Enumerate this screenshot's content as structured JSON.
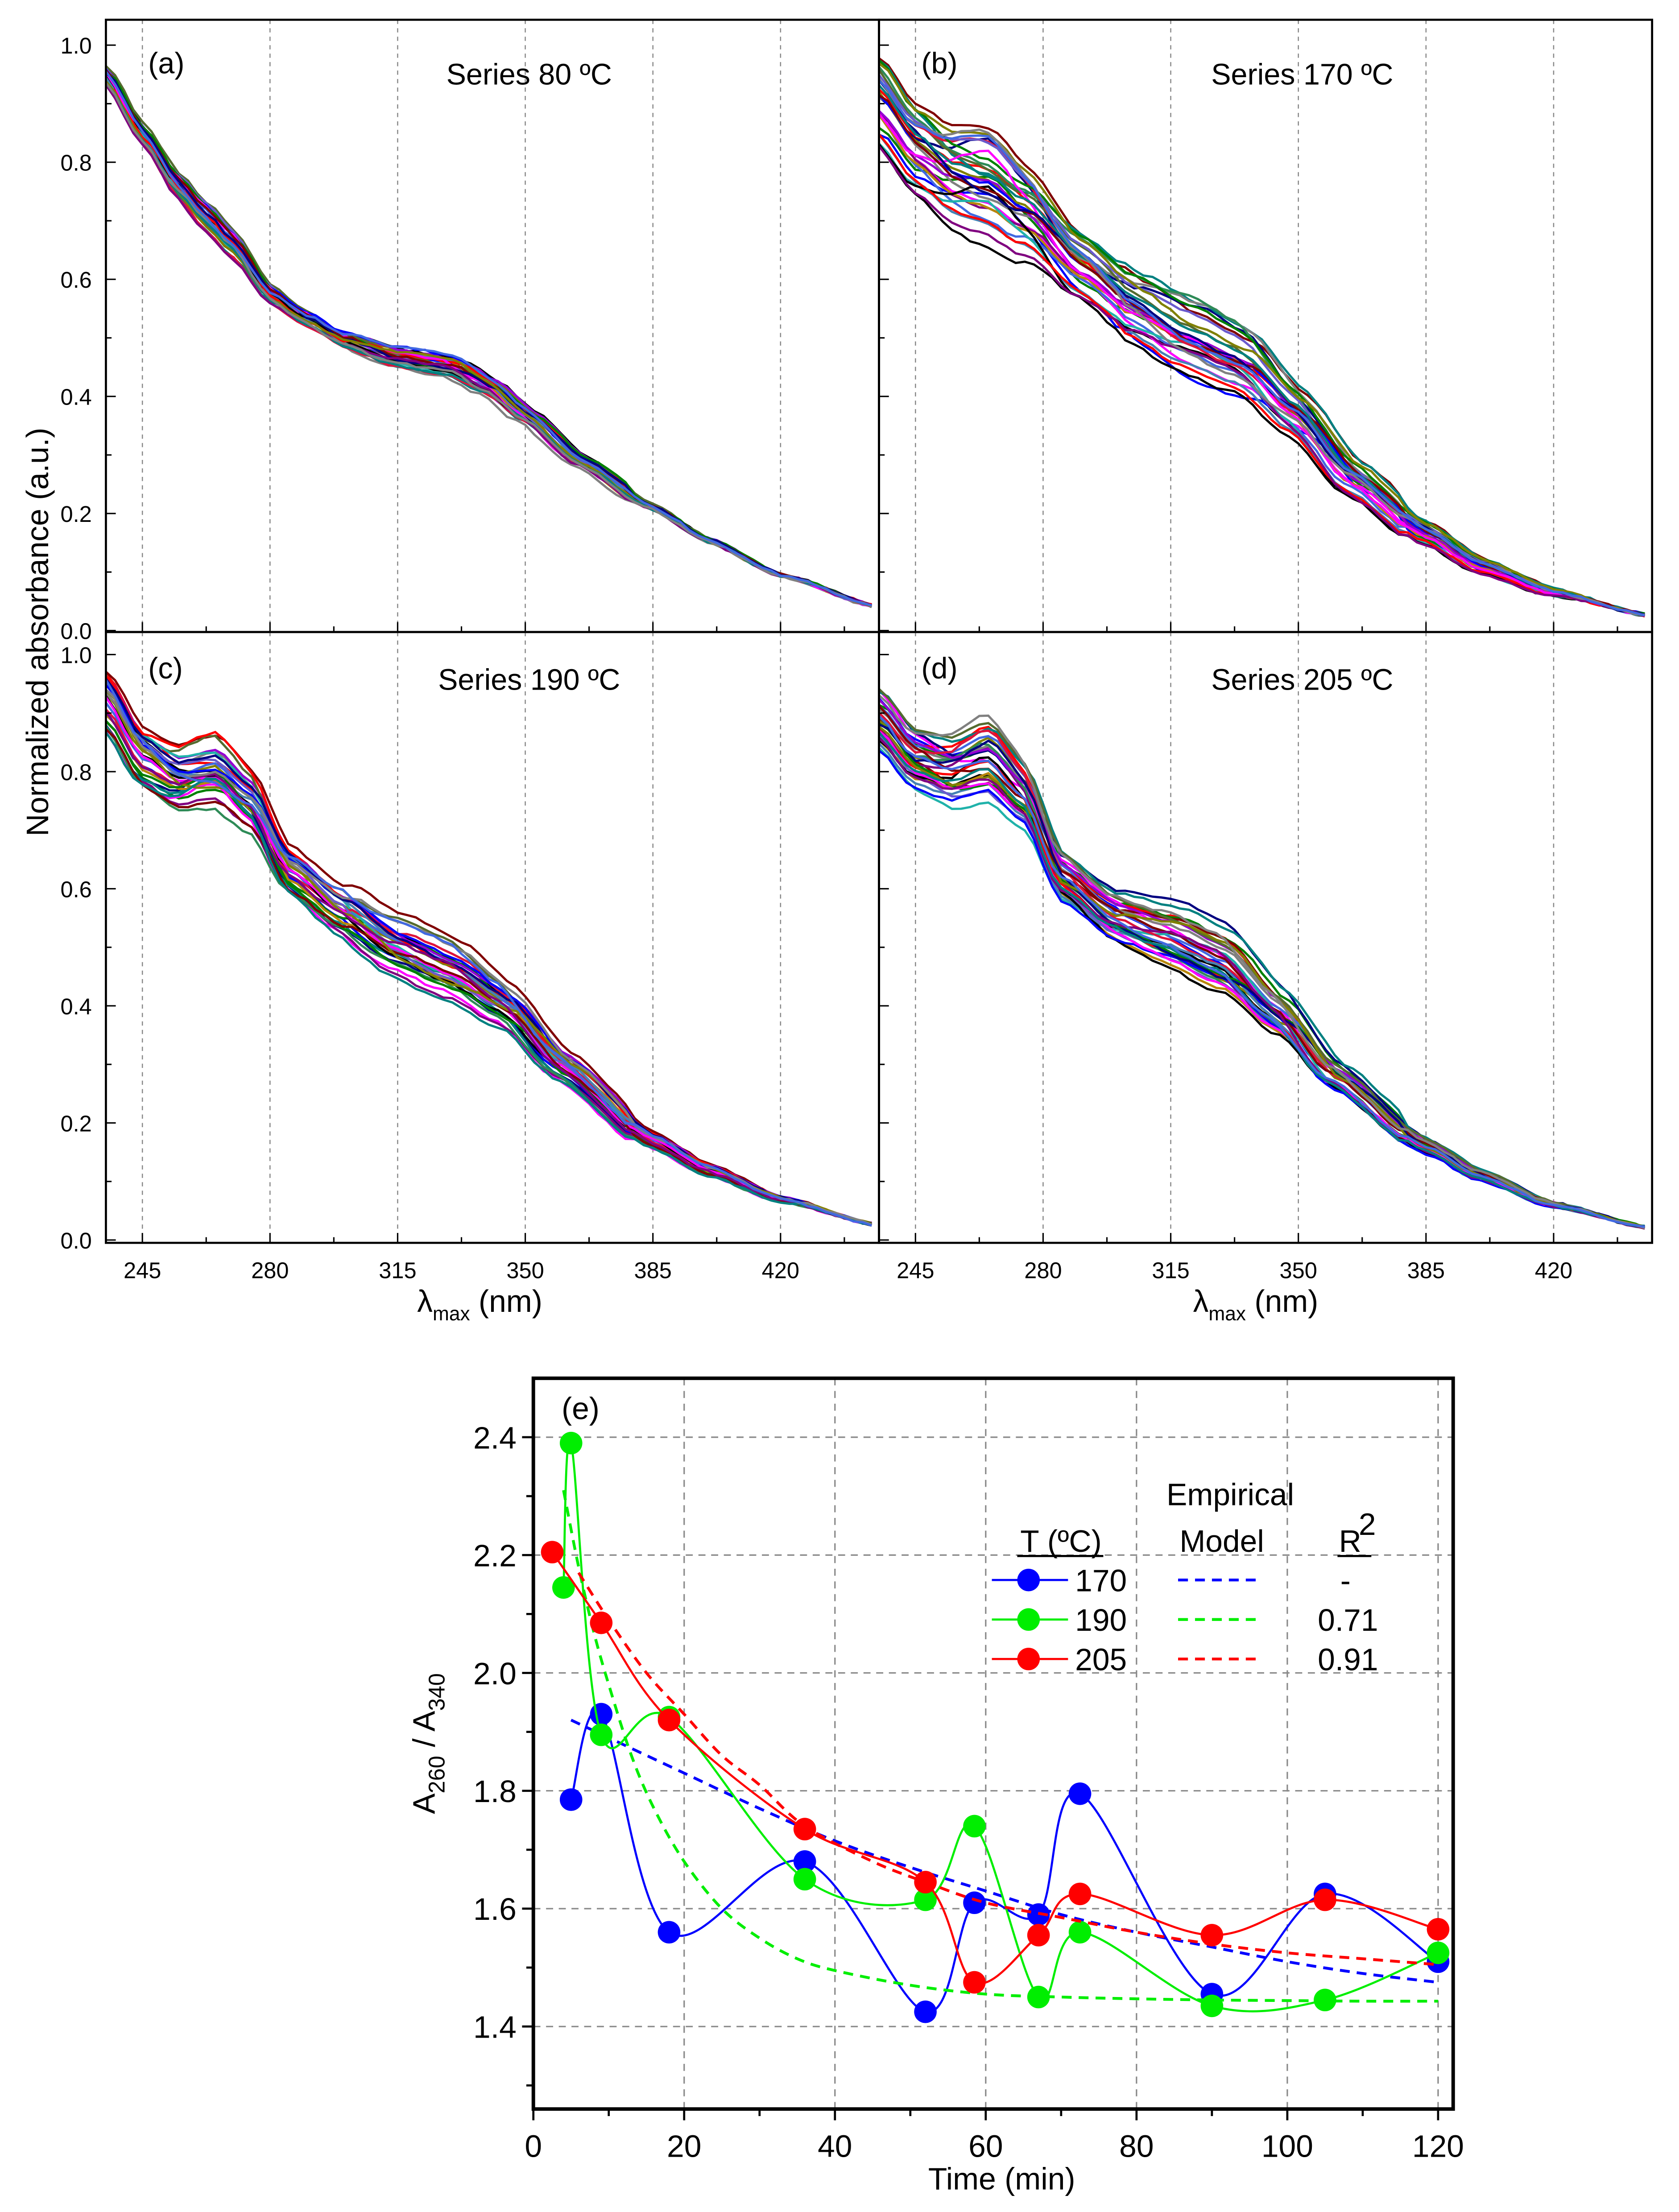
{
  "chart_data": [
    {
      "type": "line",
      "panel": "(a)",
      "title": "Series 80 ºC",
      "xlabel": "λmax (nm)",
      "ylabel": "Normalized absorbance (a.u.)",
      "xlim": [
        235,
        447
      ],
      "ylim": [
        0,
        1.04
      ],
      "xticks": [
        245,
        280,
        315,
        350,
        385,
        420
      ],
      "yticks": [
        "0.0",
        "0.2",
        "0.4",
        "0.6",
        "0.8",
        "1.0"
      ],
      "grid": "vertical dashed at x ticks",
      "spread": 0.018,
      "mean_curve": {
        "x": [
          235,
          245,
          255,
          262,
          270,
          280,
          290,
          300,
          315,
          330,
          340,
          350,
          365,
          385,
          400,
          420,
          447
        ],
        "y": [
          0.95,
          0.85,
          0.76,
          0.71,
          0.66,
          0.575,
          0.535,
          0.5,
          0.47,
          0.455,
          0.42,
          0.37,
          0.29,
          0.21,
          0.155,
          0.095,
          0.04
        ]
      }
    },
    {
      "type": "line",
      "panel": "(b)",
      "title": "Series 170 ºC",
      "xlabel": "λmax (nm)",
      "xlim": [
        235,
        447
      ],
      "ylim": [
        0,
        1.04
      ],
      "xticks": [
        245,
        280,
        315,
        350,
        385,
        420
      ],
      "spread": 0.07,
      "mean_curve": {
        "x": [
          235,
          245,
          255,
          265,
          275,
          290,
          305,
          320,
          335,
          350,
          365,
          385,
          400,
          420,
          447
        ],
        "y": [
          0.9,
          0.82,
          0.78,
          0.77,
          0.72,
          0.62,
          0.55,
          0.5,
          0.46,
          0.37,
          0.26,
          0.165,
          0.11,
          0.065,
          0.025
        ]
      }
    },
    {
      "type": "line",
      "panel": "(c)",
      "title": "Series 190 ºC",
      "xlabel": "λmax (nm)",
      "xlim": [
        235,
        447
      ],
      "ylim": [
        0,
        1.04
      ],
      "xticks": [
        245,
        280,
        315,
        350,
        385,
        420
      ],
      "yticks": [
        "0.0",
        "0.2",
        "0.4",
        "0.6",
        "0.8",
        "1.0"
      ],
      "spread": 0.05,
      "mean_curve": {
        "x": [
          235,
          245,
          255,
          265,
          275,
          285,
          300,
          315,
          330,
          345,
          360,
          385,
          400,
          420,
          447
        ],
        "y": [
          0.92,
          0.82,
          0.78,
          0.79,
          0.74,
          0.63,
          0.56,
          0.5,
          0.46,
          0.4,
          0.3,
          0.17,
          0.12,
          0.07,
          0.025
        ]
      }
    },
    {
      "type": "line",
      "panel": "(d)",
      "title": "Series 205 ºC",
      "xlabel": "λmax (nm)",
      "xlim": [
        235,
        447
      ],
      "ylim": [
        0,
        1.04
      ],
      "xticks": [
        245,
        280,
        315,
        350,
        385,
        420
      ],
      "spread": 0.05,
      "mean_curve": {
        "x": [
          235,
          245,
          255,
          265,
          275,
          285,
          300,
          315,
          330,
          345,
          360,
          385,
          400,
          420,
          447
        ],
        "y": [
          0.89,
          0.82,
          0.8,
          0.82,
          0.76,
          0.62,
          0.55,
          0.52,
          0.48,
          0.39,
          0.28,
          0.16,
          0.11,
          0.06,
          0.02
        ]
      }
    },
    {
      "type": "line",
      "panel": "(e)",
      "xlabel": "Time (min)",
      "ylabel_main": "A",
      "ylabel_sub1": "260",
      "ylabel_mid": " / A",
      "ylabel_sub2": "340",
      "xlim": [
        0,
        122
      ],
      "ylim": [
        1.26,
        2.5
      ],
      "xticks": [
        "0",
        "20",
        "40",
        "60",
        "80",
        "100",
        "120"
      ],
      "yticks": [
        "1.4",
        "1.6",
        "1.8",
        "2.0",
        "2.2",
        "2.4"
      ],
      "grid": "dashed both axes",
      "legend": {
        "header_model_top": "Empirical",
        "header_t": "T (ºC)",
        "header_model": "Model",
        "header_r": "R",
        "header_r_sup": "2"
      },
      "series": [
        {
          "name": "170",
          "color": "#0000ff",
          "r2": "-",
          "x": [
            5,
            9,
            18,
            36,
            52,
            58.5,
            67,
            72.5,
            90,
            105,
            120
          ],
          "y": [
            1.785,
            1.93,
            1.56,
            1.68,
            1.425,
            1.61,
            1.59,
            1.795,
            1.455,
            1.625,
            1.51
          ],
          "model": {
            "x": [
              5,
              10,
              20,
              30,
              40,
              50,
              60,
              70,
              80,
              90,
              100,
              110,
              120
            ],
            "y": [
              1.92,
              1.89,
              1.83,
              1.77,
              1.715,
              1.67,
              1.63,
              1.59,
              1.56,
              1.535,
              1.51,
              1.49,
              1.475
            ]
          }
        },
        {
          "name": "190",
          "color": "#00ee00",
          "r2": "0.71",
          "x": [
            4,
            5,
            9,
            18,
            36,
            52,
            58.5,
            67,
            72.5,
            90,
            105,
            120
          ],
          "y": [
            2.145,
            2.39,
            1.895,
            1.925,
            1.65,
            1.615,
            1.74,
            1.45,
            1.56,
            1.435,
            1.445,
            1.525
          ],
          "model": {
            "x": [
              4,
              6,
              8,
              10,
              13,
              16,
              20,
              25,
              30,
              35,
              40,
              50,
              60,
              70,
              80,
              90,
              100,
              110,
              120
            ],
            "y": [
              2.31,
              2.18,
              2.07,
              1.98,
              1.86,
              1.77,
              1.68,
              1.6,
              1.55,
              1.515,
              1.495,
              1.47,
              1.455,
              1.45,
              1.447,
              1.445,
              1.444,
              1.443,
              1.443
            ]
          }
        },
        {
          "name": "205",
          "color": "#ff0000",
          "r2": "0.91",
          "x": [
            2.5,
            9,
            18,
            36,
            52,
            58.5,
            67,
            72.5,
            90,
            105,
            120
          ],
          "y": [
            2.205,
            2.085,
            1.92,
            1.735,
            1.645,
            1.475,
            1.555,
            1.625,
            1.555,
            1.615,
            1.565
          ],
          "model": {
            "x": [
              6,
              10,
              15,
              20,
              25,
              30,
              36,
              45,
              52,
              60,
              70,
              80,
              90,
              100,
              110,
              120
            ],
            "y": [
              2.17,
              2.09,
              2.0,
              1.93,
              1.86,
              1.81,
              1.74,
              1.68,
              1.645,
              1.61,
              1.585,
              1.56,
              1.54,
              1.525,
              1.515,
              1.505
            ]
          }
        }
      ]
    }
  ],
  "colors": {
    "palette": [
      "#000000",
      "#0000ff",
      "#ff0000",
      "#008000",
      "#ff00ff",
      "#800000",
      "#000080",
      "#808000",
      "#800080",
      "#008080",
      "#808080",
      "#4169e1",
      "#2e8b57",
      "#9400d3",
      "#556b2f",
      "#b8860b",
      "#20b2aa",
      "#dc143c",
      "#4682b4",
      "#6a5acd"
    ],
    "grid": "#888888"
  }
}
